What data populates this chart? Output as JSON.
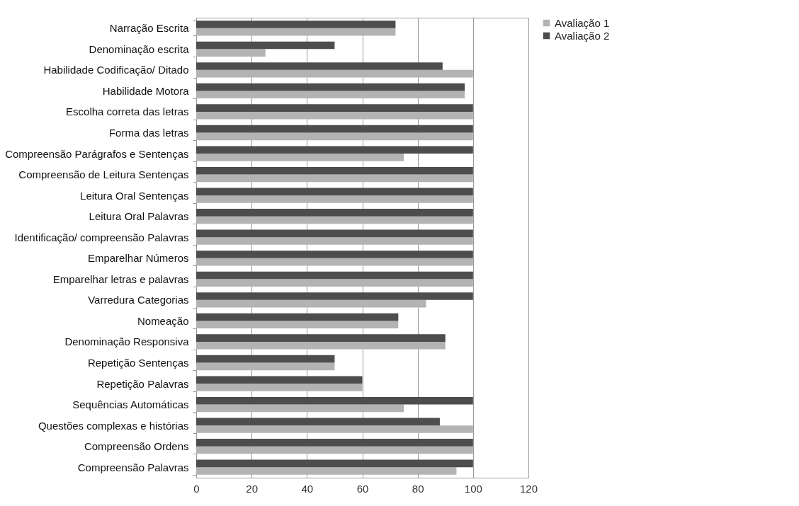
{
  "chart_data": {
    "type": "bar",
    "orientation": "horizontal",
    "categories": [
      "Narração Escrita",
      "Denominação escrita",
      "Habilidade Codificação/ Ditado",
      "Habilidade Motora",
      "Escolha correta das letras",
      "Forma das letras",
      "Compreensão Parágrafos e Sentenças",
      "Compreensão de Leitura Sentenças",
      "Leitura Oral Sentenças",
      "Leitura Oral Palavras",
      "Identificação/ compreensão Palavras",
      "Emparelhar Números",
      "Emparelhar letras e palavras",
      "Varredura Categorias",
      "Nomeação",
      "Denominação Responsiva",
      "Repetição Sentenças",
      "Repetição Palavras",
      "Sequências Automáticas",
      "Questões complexas e histórias",
      "Compreensão Ordens",
      "Compreensão Palavras"
    ],
    "series": [
      {
        "name": "Avaliação 1",
        "color": "#b3b3b3",
        "values": [
          72,
          25,
          100,
          97,
          100,
          100,
          75,
          100,
          100,
          100,
          100,
          100,
          100,
          83,
          73,
          90,
          50,
          60,
          75,
          100,
          100,
          94
        ]
      },
      {
        "name": "Avaliação 2",
        "color": "#4d4d4d",
        "values": [
          72,
          50,
          89,
          97,
          100,
          100,
          100,
          100,
          100,
          100,
          100,
          100,
          100,
          100,
          73,
          90,
          50,
          60,
          100,
          88,
          100,
          100
        ]
      }
    ],
    "xlim": [
      0,
      120
    ],
    "xticks": [
      0,
      20,
      40,
      60,
      80,
      100,
      120
    ],
    "grid": "x",
    "legend": "right"
  }
}
